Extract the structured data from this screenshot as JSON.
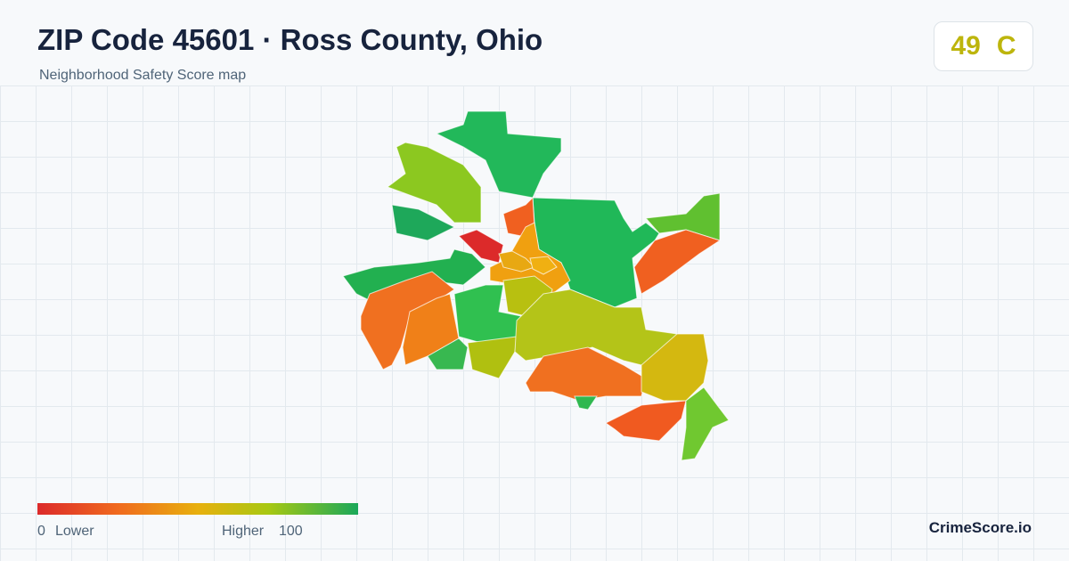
{
  "header": {
    "title": "ZIP Code 45601 · Ross County, Ohio",
    "subtitle": "Neighborhood Safety Score map"
  },
  "score": {
    "value": 49,
    "grade": "C"
  },
  "legend": {
    "min": 0,
    "min_label": "Lower",
    "max_label": "Higher",
    "max": 100
  },
  "brand": "CrimeScore.io"
}
